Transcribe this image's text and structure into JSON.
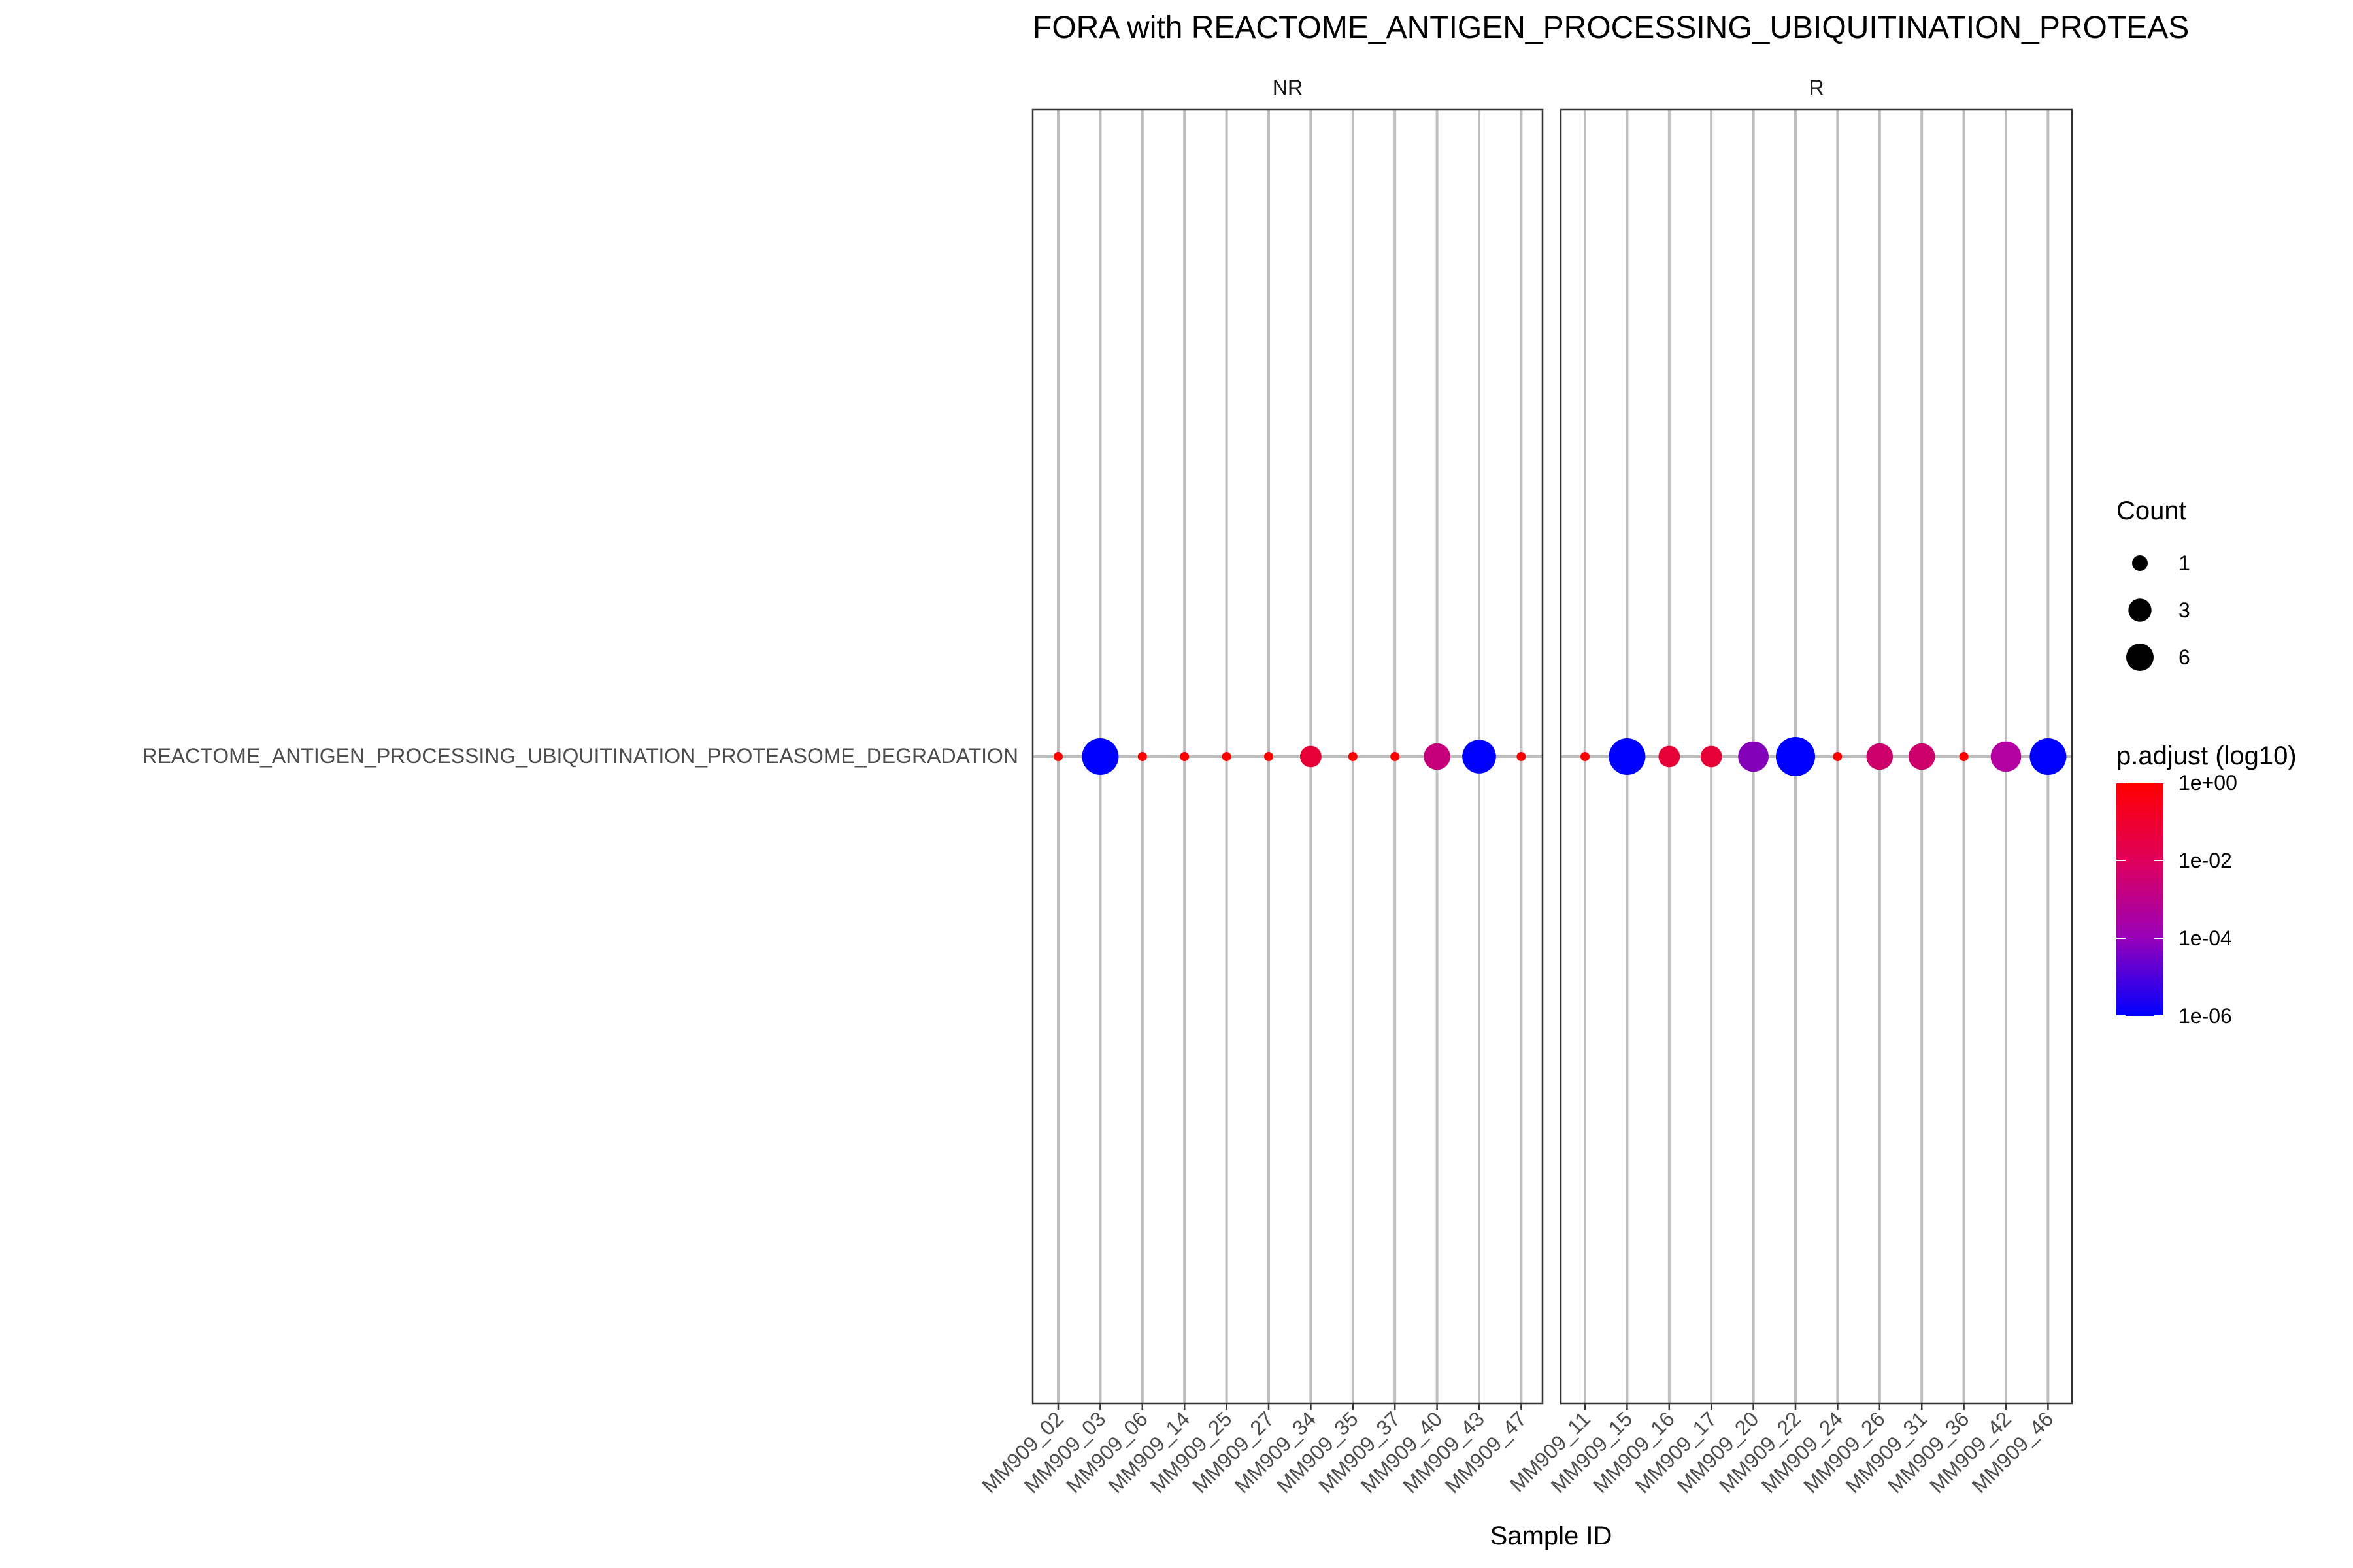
{
  "chart_data": {
    "type": "scatter",
    "title": "FORA with REACTOME_ANTIGEN_PROCESSING_UBIQUITINATION_PROTEAS",
    "xlabel": "Sample ID",
    "ylabel": "",
    "pathway": "REACTOME_ANTIGEN_PROCESSING_UBIQUITINATION_PROTEASOME_DEGRADATION",
    "facets": [
      {
        "label": "NR",
        "samples": [
          "MM909_02",
          "MM909_03",
          "MM909_06",
          "MM909_14",
          "MM909_25",
          "MM909_27",
          "MM909_34",
          "MM909_35",
          "MM909_37",
          "MM909_40",
          "MM909_43",
          "MM909_47"
        ],
        "counts": [
          1,
          6,
          1,
          1,
          1,
          1,
          2,
          1,
          1,
          3,
          5,
          1
        ],
        "p_adjust_log10": [
          0,
          -6,
          0,
          0,
          0,
          0,
          -1,
          0,
          0,
          -2.3,
          -6,
          0
        ]
      },
      {
        "label": "R",
        "samples": [
          "MM909_11",
          "MM909_15",
          "MM909_16",
          "MM909_17",
          "MM909_20",
          "MM909_22",
          "MM909_24",
          "MM909_26",
          "MM909_31",
          "MM909_36",
          "MM909_42",
          "MM909_46"
        ],
        "counts": [
          1,
          6,
          2,
          2,
          4,
          7,
          1,
          3,
          3,
          1,
          4,
          6
        ],
        "p_adjust_log10": [
          0,
          -6,
          -1,
          -1,
          -3.8,
          -6,
          0,
          -2,
          -2,
          0,
          -3,
          -6
        ]
      }
    ],
    "size_legend": {
      "title": "Count",
      "values": [
        1,
        3,
        6
      ],
      "labels": [
        "1",
        "3",
        "6"
      ]
    },
    "color_legend": {
      "title": "p.adjust (log10)",
      "labels": [
        "1e+00",
        "1e-02",
        "1e-04",
        "1e-06"
      ],
      "log10_range": [
        -6,
        0
      ],
      "low_color": "#0000FF",
      "high_color": "#FF0000",
      "mid_color": "#B400A0"
    },
    "panel_grid_color": "#BEBEBE"
  }
}
